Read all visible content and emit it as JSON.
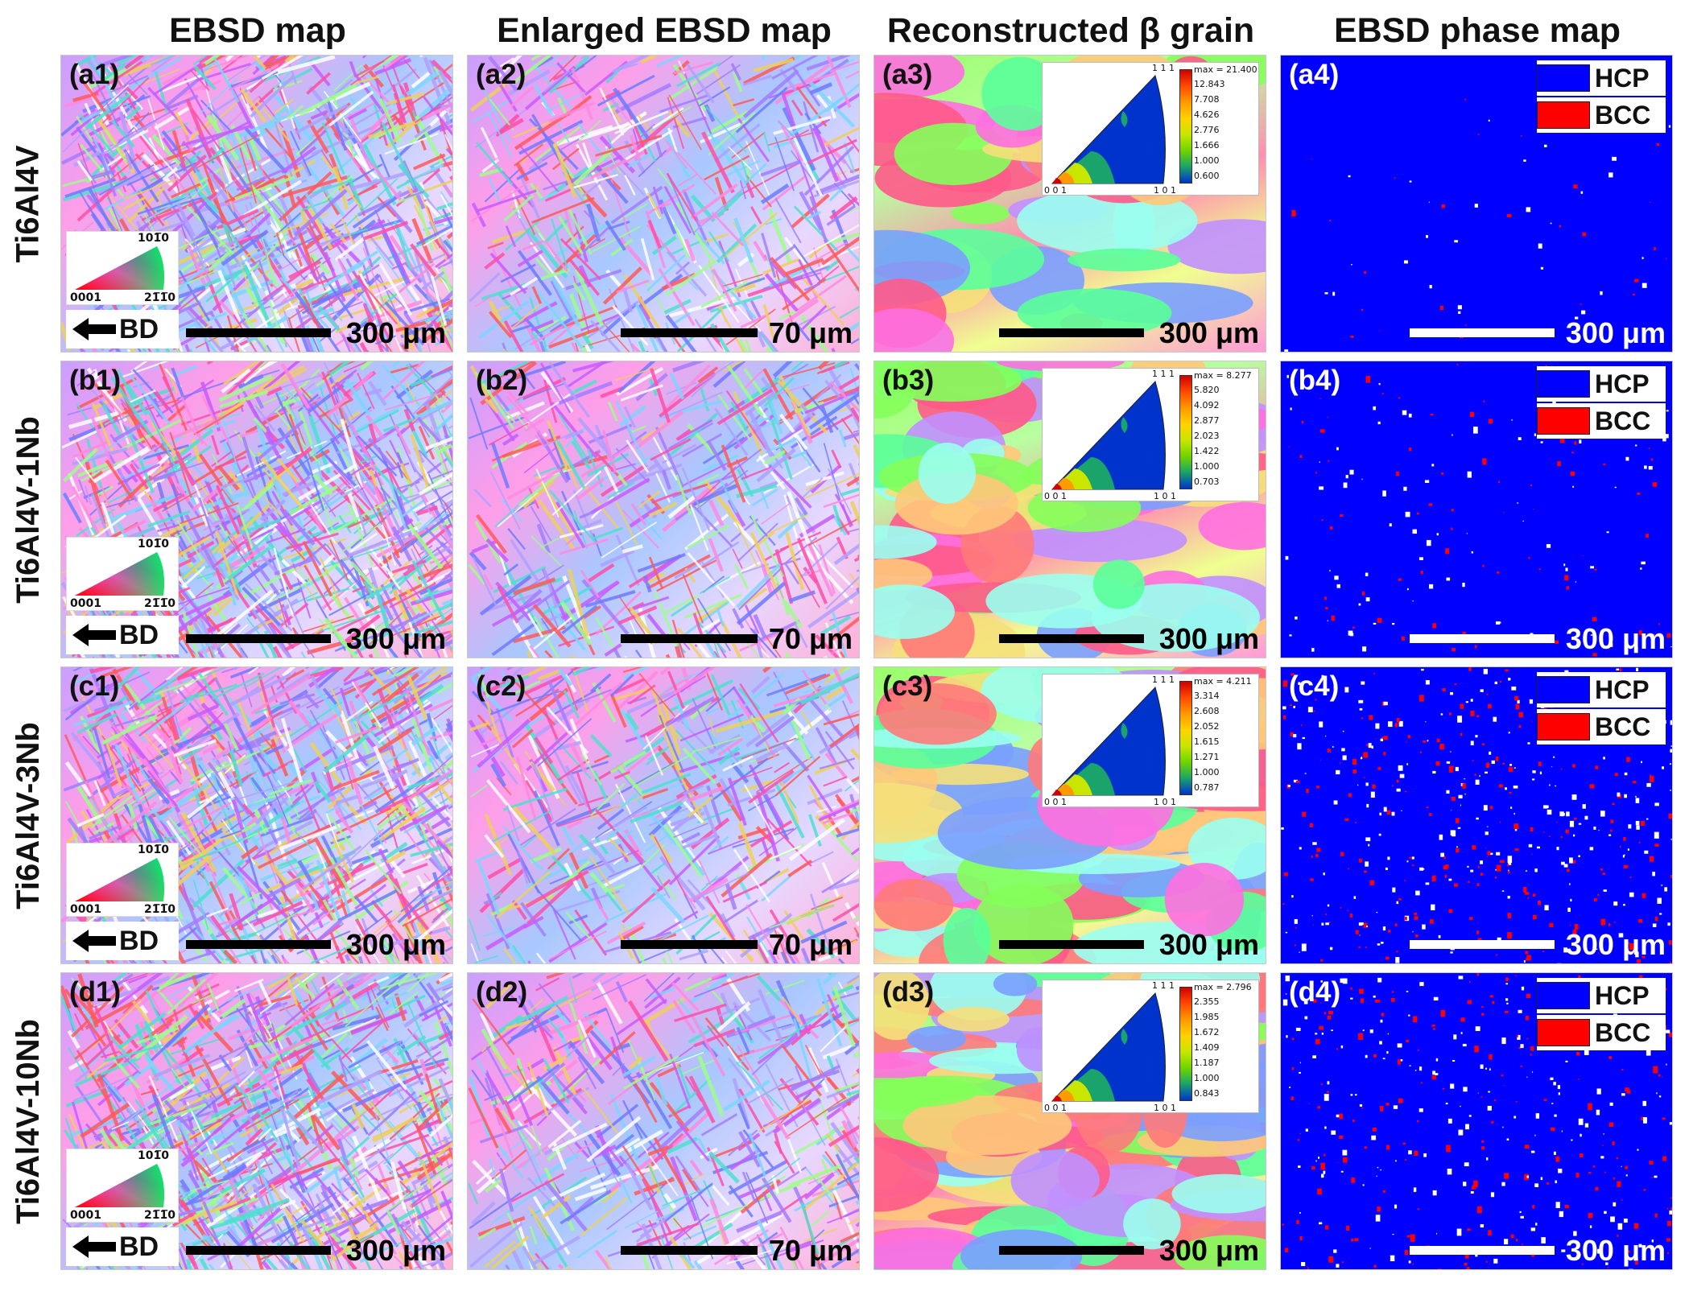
{
  "columns": [
    "EBSD map",
    "Enlarged EBSD map",
    "Reconstructed β grain",
    "EBSD phase map"
  ],
  "rows": [
    {
      "alloy": "Ti6Al4V",
      "labels": [
        "(a1)",
        "(a2)",
        "(a3)",
        "(a4)"
      ],
      "pf_max": "max = 21.400",
      "pf_scale": [
        "12.843",
        "7.708",
        "4.626",
        "2.776",
        "1.666",
        "1.000",
        "0.600"
      ]
    },
    {
      "alloy": "Ti6Al4V-1Nb",
      "labels": [
        "(b1)",
        "(b2)",
        "(b3)",
        "(b4)"
      ],
      "pf_max": "max = 8.277",
      "pf_scale": [
        "5.820",
        "4.092",
        "2.877",
        "2.023",
        "1.422",
        "1.000",
        "0.703"
      ]
    },
    {
      "alloy": "Ti6Al4V-3Nb",
      "labels": [
        "(c1)",
        "(c2)",
        "(c3)",
        "(c4)"
      ],
      "pf_max": "max = 4.211",
      "pf_scale": [
        "3.314",
        "2.608",
        "2.052",
        "1.615",
        "1.271",
        "1.000",
        "0.787"
      ]
    },
    {
      "alloy": "Ti6Al4V-10Nb",
      "labels": [
        "(d1)",
        "(d2)",
        "(d3)",
        "(d4)"
      ],
      "pf_max": "max = 2.796",
      "pf_scale": [
        "2.355",
        "1.985",
        "1.672",
        "1.409",
        "1.187",
        "1.000",
        "0.843"
      ]
    }
  ],
  "scalebars": [
    "300 μm",
    "70 μm",
    "300 μm",
    "300 μm"
  ],
  "build_direction": "BD",
  "ipf_key": {
    "top": "101̅0",
    "left": "0001",
    "right": "21̅1̅0"
  },
  "pole_figure_labels": {
    "top": "1 1 1",
    "left": "0 0 1",
    "right": "1 0 1"
  },
  "phase_legend": [
    {
      "label": "HCP",
      "color": "#0000ff"
    },
    {
      "label": "BCC",
      "color": "#ff0000"
    }
  ],
  "colors": {
    "phase_background": "#0000ff",
    "bcc": "#ff0000"
  }
}
